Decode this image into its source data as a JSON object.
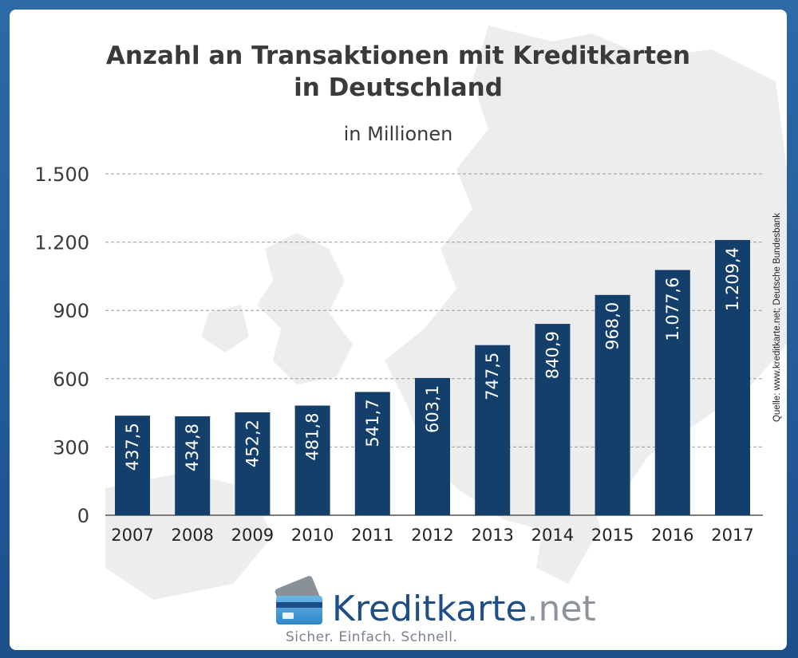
{
  "title_line1": "Anzahl an Transaktionen mit Kreditkarten",
  "title_line2": "in Deutschland",
  "subtitle": "in Millionen",
  "source": "Quelle: www.kreditkarte.net; Deutsche Bundesbank",
  "logo": {
    "name": "Kreditkarte",
    "tld": ".net",
    "tagline": "Sicher. Einfach. Schnell."
  },
  "colors": {
    "bar": "#143f6b",
    "frame": "#2d6aa8",
    "bar_label": "#ffffff",
    "text": "#3a3a3a"
  },
  "chart_data": {
    "type": "bar",
    "title": "Anzahl an Transaktionen mit Kreditkarten in Deutschland",
    "subtitle": "in Millionen",
    "xlabel": "",
    "ylabel": "",
    "categories": [
      "2007",
      "2008",
      "2009",
      "2010",
      "2011",
      "2012",
      "2013",
      "2014",
      "2015",
      "2016",
      "2017"
    ],
    "values": [
      437.5,
      434.8,
      452.2,
      481.8,
      541.7,
      603.1,
      747.5,
      840.9,
      968.0,
      1077.6,
      1209.4
    ],
    "value_labels": [
      "437,5",
      "434,8",
      "452,2",
      "481,8",
      "541,7",
      "603,1",
      "747,5",
      "840,9",
      "968,0",
      "1.077,6",
      "1.209,4"
    ],
    "yticks": [
      0,
      300,
      600,
      900,
      1200,
      1500
    ],
    "ytick_labels": [
      "0",
      "300",
      "600",
      "900",
      "1.200",
      "1.500"
    ],
    "ylim": [
      0,
      1500
    ],
    "grid": true,
    "legend": "none"
  }
}
